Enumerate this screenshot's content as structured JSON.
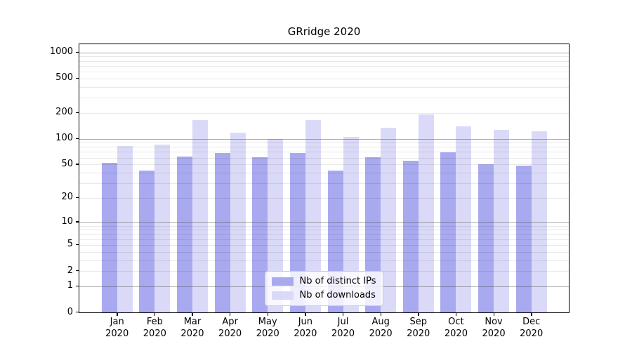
{
  "title": "GRridge 2020",
  "legend": {
    "items": [
      {
        "label": "Nb of distinct IPs",
        "color": "#a9a9f0"
      },
      {
        "label": "Nb of downloads",
        "color": "#dadaf8"
      }
    ]
  },
  "colors": {
    "bar_distinct_ips": "#a9a9f0",
    "bar_downloads": "#dadaf8",
    "major_grid": "#b4b4b4",
    "minor_grid": "#e8e8e8",
    "axis": "#000000"
  },
  "chart_data": {
    "type": "bar",
    "title": "GRridge 2020",
    "categories": [
      "Jan",
      "Feb",
      "Mar",
      "Apr",
      "May",
      "Jun",
      "Jul",
      "Aug",
      "Sep",
      "Oct",
      "Nov",
      "Dec"
    ],
    "x_year_label": "2020",
    "series": [
      {
        "name": "Nb of distinct IPs",
        "color": "#a9a9f0",
        "values": [
          52,
          42,
          62,
          68,
          61,
          68,
          42,
          61,
          55,
          69,
          50,
          48
        ]
      },
      {
        "name": "Nb of downloads",
        "color": "#dadaf8",
        "values": [
          82,
          86,
          165,
          118,
          100,
          166,
          104,
          135,
          193,
          140,
          127,
          122
        ]
      }
    ],
    "xlabel": "",
    "ylabel": "",
    "yscale": "log1p",
    "ylim": [
      0,
      1240
    ],
    "y_ticks": [
      0,
      1,
      2,
      5,
      10,
      20,
      50,
      100,
      200,
      500,
      1000
    ],
    "grid": {
      "major": true,
      "minor": true,
      "drawn_over_bars": true
    },
    "legend_position": "lower center"
  }
}
